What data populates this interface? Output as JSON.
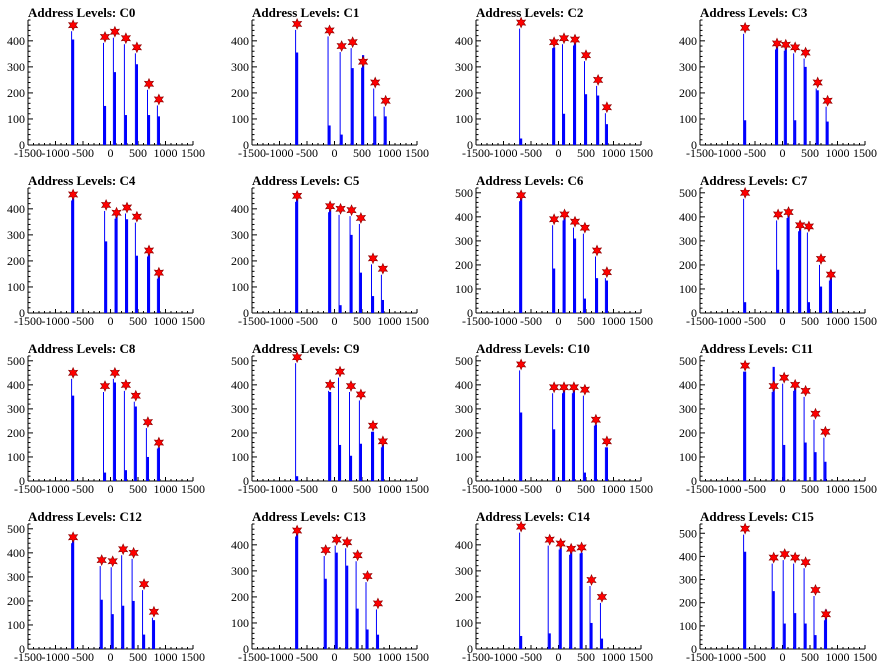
{
  "chart_data": [
    {
      "type": "bar",
      "title": "Address Levels: C0",
      "xlim": [
        -1500,
        1500
      ],
      "ylim": [
        0,
        480
      ],
      "yticks": [
        0,
        100,
        200,
        300,
        400
      ],
      "x": [
        -680,
        -100,
        80,
        280,
        480,
        700,
        880
      ],
      "values": [
        460,
        415,
        435,
        410,
        375,
        235,
        175
      ],
      "inner": [
        405,
        150,
        280,
        115,
        310,
        115,
        110
      ]
    },
    {
      "type": "bar",
      "title": "Address Levels: C1",
      "xlim": [
        -1500,
        1500
      ],
      "ylim": [
        0,
        480
      ],
      "yticks": [
        0,
        100,
        200,
        300,
        400
      ],
      "x": [
        -680,
        -90,
        130,
        330,
        520,
        740,
        930
      ],
      "values": [
        465,
        440,
        380,
        395,
        320,
        240,
        170
      ],
      "inner": [
        355,
        75,
        40,
        295,
        345,
        110,
        110
      ]
    },
    {
      "type": "bar",
      "title": "Address Levels: C2",
      "xlim": [
        -1500,
        1500
      ],
      "ylim": [
        0,
        480
      ],
      "yticks": [
        0,
        100,
        200,
        300,
        400
      ],
      "x": [
        -680,
        -80,
        100,
        300,
        500,
        720,
        880
      ],
      "values": [
        470,
        395,
        410,
        405,
        345,
        250,
        145
      ],
      "inner": [
        25,
        375,
        120,
        395,
        195,
        190,
        80
      ]
    },
    {
      "type": "bar",
      "title": "Address Levels: C3",
      "xlim": [
        -1500,
        1500
      ],
      "ylim": [
        0,
        480
      ],
      "yticks": [
        0,
        100,
        200,
        300,
        400
      ],
      "x": [
        -680,
        -100,
        60,
        230,
        420,
        640,
        820
      ],
      "values": [
        450,
        390,
        385,
        375,
        355,
        240,
        170
      ],
      "inner": [
        95,
        380,
        375,
        95,
        300,
        210,
        90
      ]
    },
    {
      "type": "bar",
      "title": "Address Levels: C4",
      "xlim": [
        -1500,
        1500
      ],
      "ylim": [
        0,
        480
      ],
      "yticks": [
        0,
        100,
        200,
        300,
        400
      ],
      "x": [
        -680,
        -80,
        110,
        300,
        480,
        700,
        880
      ],
      "values": [
        455,
        415,
        385,
        405,
        370,
        240,
        155
      ],
      "inner": [
        440,
        275,
        395,
        360,
        220,
        230,
        150
      ]
    },
    {
      "type": "bar",
      "title": "Address Levels: C5",
      "xlim": [
        -1500,
        1500
      ],
      "ylim": [
        0,
        480
      ],
      "yticks": [
        0,
        100,
        200,
        300,
        400
      ],
      "x": [
        -680,
        -80,
        110,
        310,
        480,
        700,
        880
      ],
      "values": [
        450,
        410,
        400,
        395,
        365,
        210,
        170
      ],
      "inner": [
        440,
        395,
        30,
        300,
        155,
        65,
        50
      ]
    },
    {
      "type": "bar",
      "title": "Address Levels: C6",
      "xlim": [
        -1500,
        1500
      ],
      "ylim": [
        0,
        520
      ],
      "yticks": [
        0,
        100,
        200,
        300,
        400,
        500
      ],
      "x": [
        -680,
        -80,
        110,
        300,
        480,
        700,
        880
      ],
      "values": [
        490,
        390,
        410,
        380,
        355,
        260,
        170
      ],
      "inner": [
        480,
        185,
        395,
        310,
        60,
        145,
        135
      ]
    },
    {
      "type": "bar",
      "title": "Address Levels: C7",
      "xlim": [
        -1500,
        1500
      ],
      "ylim": [
        0,
        520
      ],
      "yticks": [
        0,
        100,
        200,
        300,
        400,
        500
      ],
      "x": [
        -680,
        -80,
        110,
        320,
        480,
        700,
        880
      ],
      "values": [
        500,
        410,
        420,
        365,
        360,
        225,
        160
      ],
      "inner": [
        45,
        180,
        410,
        355,
        45,
        110,
        145
      ]
    },
    {
      "type": "bar",
      "title": "Address Levels: C8",
      "xlim": [
        -1500,
        1500
      ],
      "ylim": [
        0,
        520
      ],
      "yticks": [
        0,
        100,
        200,
        300,
        400,
        500
      ],
      "x": [
        -680,
        -100,
        80,
        280,
        460,
        680,
        880
      ],
      "values": [
        450,
        395,
        450,
        400,
        355,
        245,
        160
      ],
      "inner": [
        355,
        35,
        410,
        45,
        310,
        100,
        140
      ]
    },
    {
      "type": "bar",
      "title": "Address Levels: C9",
      "xlim": [
        -1500,
        1500
      ],
      "ylim": [
        0,
        520
      ],
      "yticks": [
        0,
        100,
        200,
        300,
        400,
        500
      ],
      "x": [
        -680,
        -80,
        100,
        300,
        480,
        700,
        880
      ],
      "values": [
        515,
        400,
        455,
        395,
        360,
        230,
        165
      ],
      "inner": [
        20,
        370,
        150,
        105,
        155,
        205,
        150
      ]
    },
    {
      "type": "bar",
      "title": "Address Levels: C10",
      "xlim": [
        -1500,
        1500
      ],
      "ylim": [
        0,
        520
      ],
      "yticks": [
        0,
        100,
        200,
        300,
        400,
        500
      ],
      "x": [
        -680,
        -80,
        100,
        280,
        480,
        680,
        880
      ],
      "values": [
        485,
        390,
        390,
        390,
        380,
        255,
        165
      ],
      "inner": [
        285,
        215,
        395,
        385,
        35,
        235,
        140
      ]
    },
    {
      "type": "bar",
      "title": "Address Levels: C11",
      "xlim": [
        -1500,
        1500
      ],
      "ylim": [
        0,
        520
      ],
      "yticks": [
        0,
        100,
        200,
        300,
        400,
        500
      ],
      "x": [
        -680,
        -160,
        30,
        230,
        420,
        600,
        780
      ],
      "values": [
        480,
        395,
        430,
        400,
        375,
        280,
        205
      ],
      "inner": [
        455,
        475,
        150,
        390,
        160,
        120,
        80
      ]
    },
    {
      "type": "bar",
      "title": "Address Levels: C12",
      "xlim": [
        -1500,
        1500
      ],
      "ylim": [
        0,
        520
      ],
      "yticks": [
        0,
        100,
        200,
        300,
        400,
        500
      ],
      "x": [
        -680,
        -160,
        40,
        230,
        420,
        610,
        790
      ],
      "values": [
        465,
        370,
        365,
        415,
        400,
        270,
        155
      ],
      "inner": [
        455,
        205,
        145,
        180,
        200,
        60,
        120
      ]
    },
    {
      "type": "bar",
      "title": "Address Levels: C13",
      "xlim": [
        -1500,
        1500
      ],
      "ylim": [
        0,
        480
      ],
      "yticks": [
        0,
        100,
        200,
        300,
        400
      ],
      "x": [
        -680,
        -160,
        40,
        230,
        420,
        600,
        790
      ],
      "values": [
        455,
        380,
        420,
        410,
        360,
        280,
        175
      ],
      "inner": [
        445,
        270,
        370,
        320,
        155,
        75,
        55
      ]
    },
    {
      "type": "bar",
      "title": "Address Levels: C14",
      "xlim": [
        -1500,
        1500
      ],
      "ylim": [
        0,
        480
      ],
      "yticks": [
        0,
        100,
        200,
        300,
        400
      ],
      "x": [
        -680,
        -160,
        40,
        230,
        420,
        600,
        790
      ],
      "values": [
        470,
        420,
        405,
        385,
        390,
        265,
        200
      ],
      "inner": [
        50,
        60,
        390,
        380,
        370,
        100,
        40
      ]
    },
    {
      "type": "bar",
      "title": "Address Levels: C15",
      "xlim": [
        -1500,
        1500
      ],
      "ylim": [
        0,
        540
      ],
      "yticks": [
        0,
        100,
        200,
        300,
        400,
        500
      ],
      "x": [
        -680,
        -160,
        40,
        230,
        420,
        600,
        790
      ],
      "values": [
        520,
        395,
        410,
        395,
        375,
        255,
        150
      ],
      "inner": [
        420,
        250,
        110,
        155,
        110,
        60,
        170
      ]
    }
  ]
}
